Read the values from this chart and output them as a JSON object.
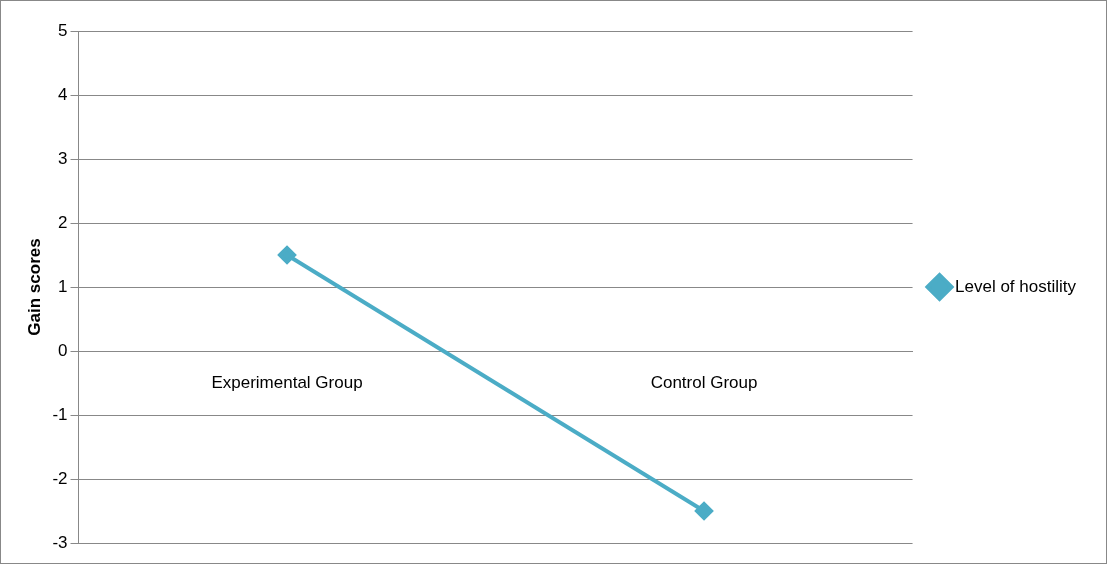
{
  "chart_data": {
    "type": "line",
    "ylabel": "Gain scores",
    "categories": [
      "Experimental Group",
      "Control Group"
    ],
    "series": [
      {
        "name": "Level of hostility",
        "color": "#4bacc6",
        "values": [
          1.5,
          -2.5
        ]
      }
    ],
    "ylim": [
      -3,
      5
    ],
    "yticks": [
      -3,
      -2,
      -1,
      0,
      1,
      2,
      3,
      4,
      5
    ],
    "grid": "y",
    "legend": "right",
    "marker": "diamond",
    "line_style": "solid"
  }
}
